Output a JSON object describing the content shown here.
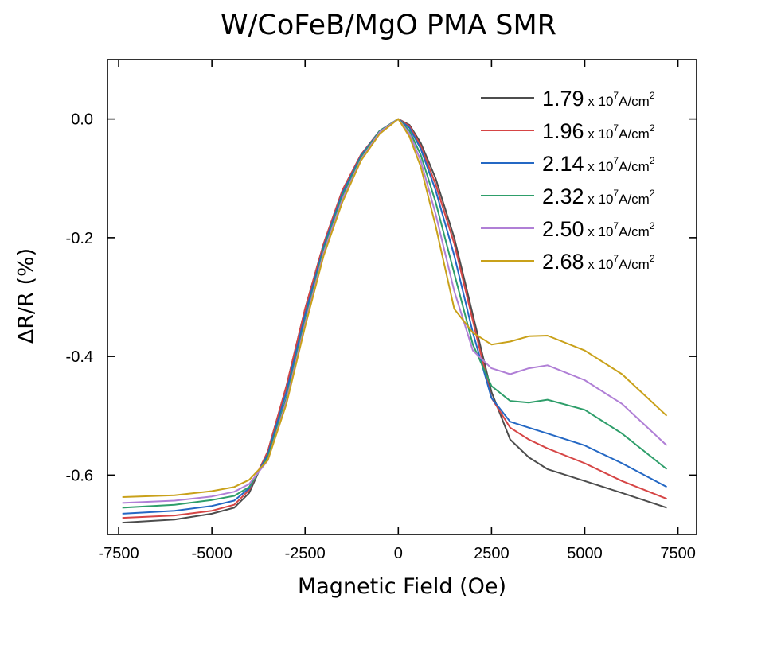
{
  "chart_data": {
    "type": "line",
    "title": "W/CoFeB/MgO PMA SMR",
    "xlabel": "Magnetic Field (Oe)",
    "ylabel": "ΔR/R (%)",
    "xlim": [
      -7800,
      8000
    ],
    "ylim": [
      -0.7,
      0.1
    ],
    "xticks": [
      -7500,
      -5000,
      -2500,
      0,
      2500,
      5000,
      7500
    ],
    "xtick_labels": [
      "-7500",
      "-5000",
      "-2500",
      "0",
      "2500",
      "5000",
      "7500"
    ],
    "yticks": [
      0.0,
      -0.2,
      -0.4,
      -0.6
    ],
    "ytick_labels": [
      "0.0",
      "-0.2",
      "-0.4",
      "-0.6"
    ],
    "grid": false,
    "legend_position": "top-right",
    "legend_unit_prefix": "x 10",
    "legend_unit_exp": "7",
    "legend_unit_suffix": "A/cm",
    "legend_unit_sup": "2",
    "series": [
      {
        "name": "1.79",
        "color": "#4d4d4d",
        "x": [
          -7400,
          -6000,
          -5000,
          -4400,
          -4000,
          -3500,
          -3000,
          -2500,
          -2000,
          -1500,
          -1000,
          -500,
          0,
          300,
          600,
          1000,
          1500,
          2000,
          2500,
          3000,
          3500,
          4000,
          5000,
          6000,
          7200
        ],
        "y": [
          -0.68,
          -0.675,
          -0.665,
          -0.655,
          -0.63,
          -0.56,
          -0.45,
          -0.32,
          -0.21,
          -0.12,
          -0.06,
          -0.02,
          0,
          -0.01,
          -0.04,
          -0.1,
          -0.2,
          -0.33,
          -0.46,
          -0.54,
          -0.57,
          -0.59,
          -0.61,
          -0.63,
          -0.655
        ]
      },
      {
        "name": "1.96",
        "color": "#d64545",
        "x": [
          -7400,
          -6000,
          -5000,
          -4400,
          -4000,
          -3500,
          -3000,
          -2500,
          -2000,
          -1500,
          -1000,
          -500,
          0,
          300,
          600,
          1000,
          1500,
          2000,
          2500,
          3000,
          3500,
          4000,
          5000,
          6000,
          7200
        ],
        "y": [
          -0.672,
          -0.668,
          -0.66,
          -0.65,
          -0.625,
          -0.56,
          -0.45,
          -0.32,
          -0.21,
          -0.12,
          -0.06,
          -0.02,
          0,
          -0.012,
          -0.045,
          -0.11,
          -0.21,
          -0.34,
          -0.47,
          -0.52,
          -0.54,
          -0.555,
          -0.58,
          -0.61,
          -0.64
        ]
      },
      {
        "name": "2.14",
        "color": "#2468c4",
        "x": [
          -7400,
          -6000,
          -5000,
          -4400,
          -4000,
          -3500,
          -3000,
          -2500,
          -2000,
          -1500,
          -1000,
          -500,
          0,
          300,
          600,
          1000,
          1500,
          2000,
          2500,
          3000,
          3500,
          4000,
          5000,
          6000,
          7200
        ],
        "y": [
          -0.665,
          -0.66,
          -0.652,
          -0.643,
          -0.622,
          -0.565,
          -0.46,
          -0.33,
          -0.215,
          -0.125,
          -0.062,
          -0.02,
          0,
          -0.015,
          -0.05,
          -0.12,
          -0.23,
          -0.36,
          -0.47,
          -0.51,
          -0.52,
          -0.53,
          -0.55,
          -0.58,
          -0.62
        ]
      },
      {
        "name": "2.32",
        "color": "#2e9e6a",
        "x": [
          -7400,
          -6000,
          -5000,
          -4400,
          -4000,
          -3500,
          -3000,
          -2500,
          -2000,
          -1500,
          -1000,
          -500,
          0,
          300,
          600,
          1000,
          1500,
          2000,
          2500,
          3000,
          3500,
          4000,
          5000,
          6000,
          7200
        ],
        "y": [
          -0.655,
          -0.65,
          -0.642,
          -0.635,
          -0.62,
          -0.57,
          -0.47,
          -0.34,
          -0.22,
          -0.13,
          -0.065,
          -0.02,
          0,
          -0.02,
          -0.06,
          -0.14,
          -0.26,
          -0.38,
          -0.45,
          -0.475,
          -0.478,
          -0.473,
          -0.49,
          -0.53,
          -0.59
        ]
      },
      {
        "name": "2.50",
        "color": "#b07fd6",
        "x": [
          -7400,
          -6000,
          -5000,
          -4400,
          -4000,
          -3500,
          -3000,
          -2500,
          -2000,
          -1500,
          -1000,
          -500,
          0,
          300,
          600,
          1000,
          1500,
          2000,
          2500,
          3000,
          3500,
          4000,
          5000,
          6000,
          7200
        ],
        "y": [
          -0.647,
          -0.643,
          -0.636,
          -0.628,
          -0.615,
          -0.575,
          -0.475,
          -0.345,
          -0.225,
          -0.135,
          -0.068,
          -0.022,
          0,
          -0.025,
          -0.07,
          -0.16,
          -0.29,
          -0.39,
          -0.42,
          -0.43,
          -0.42,
          -0.415,
          -0.44,
          -0.48,
          -0.55
        ]
      },
      {
        "name": "2.68",
        "color": "#c9a11a",
        "x": [
          -7400,
          -6000,
          -5000,
          -4400,
          -4000,
          -3500,
          -3000,
          -2500,
          -2000,
          -1500,
          -1000,
          -500,
          0,
          300,
          600,
          1000,
          1500,
          2000,
          2500,
          3000,
          3500,
          4000,
          5000,
          6000,
          7200
        ],
        "y": [
          -0.637,
          -0.634,
          -0.627,
          -0.62,
          -0.608,
          -0.575,
          -0.48,
          -0.35,
          -0.23,
          -0.14,
          -0.07,
          -0.025,
          0,
          -0.03,
          -0.08,
          -0.18,
          -0.32,
          -0.36,
          -0.38,
          -0.375,
          -0.366,
          -0.365,
          -0.39,
          -0.43,
          -0.5
        ]
      }
    ]
  }
}
